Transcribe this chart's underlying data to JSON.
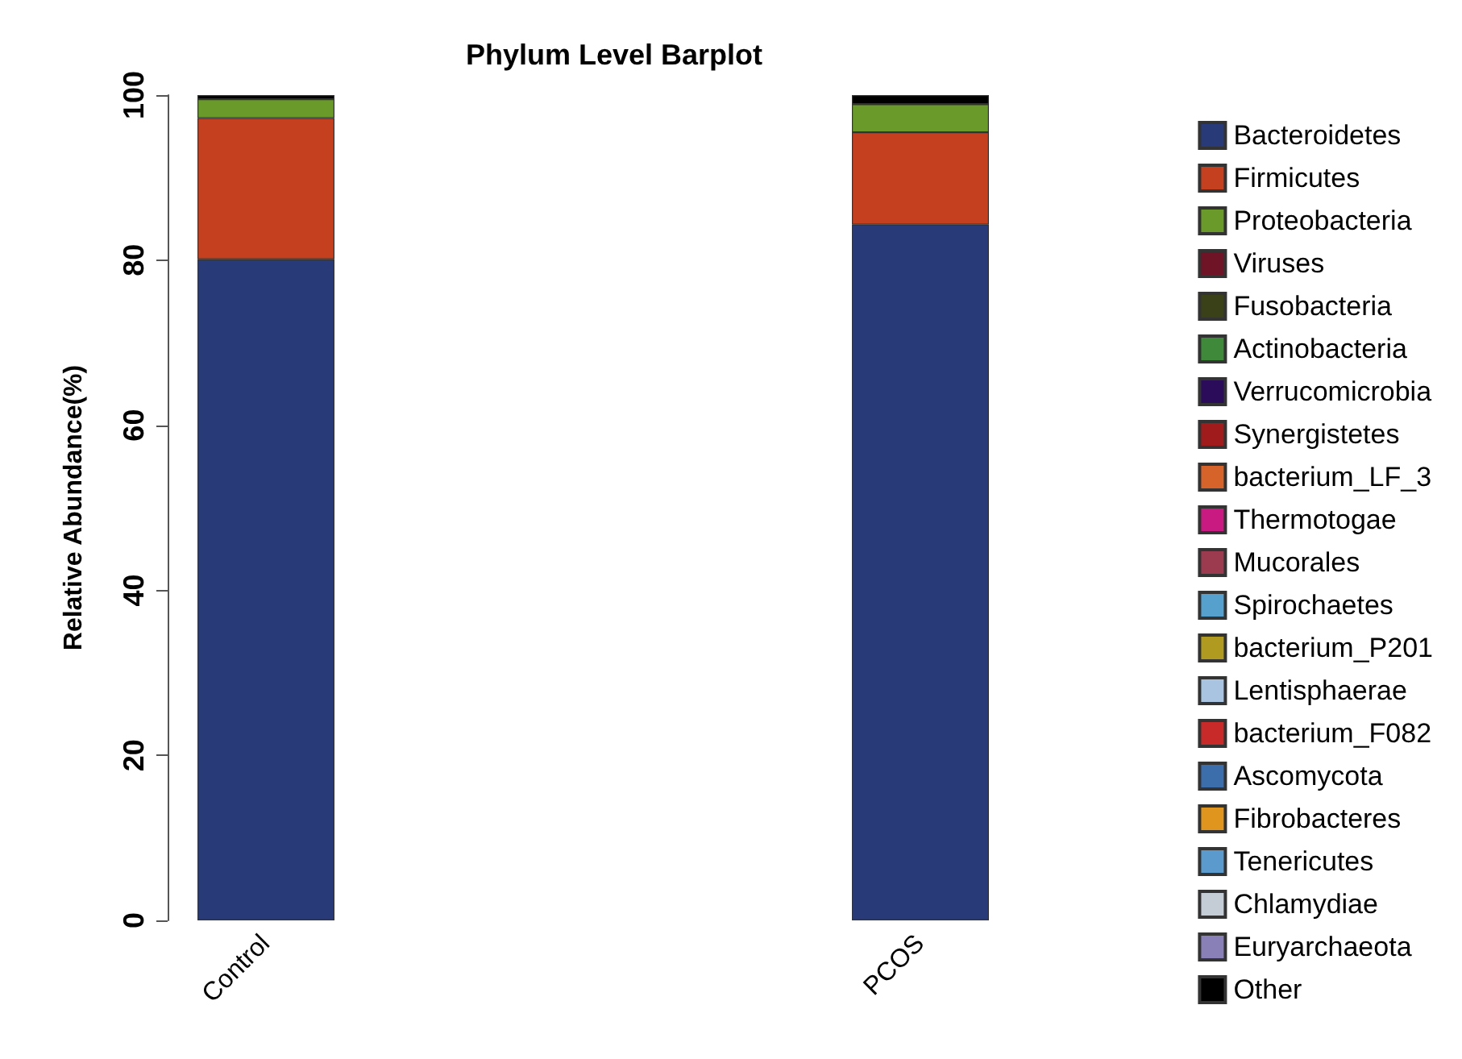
{
  "chart_data": {
    "type": "bar",
    "title": "Phylum Level Barplot",
    "ylabel": "Relative Abundance(%)",
    "categories": [
      "Control",
      "PCOS"
    ],
    "stacked": true,
    "ylim": [
      0,
      100
    ],
    "yticks": [
      0,
      20,
      40,
      60,
      80,
      100
    ],
    "legend": "right",
    "grid": false,
    "series": [
      {
        "name": "Bacteroidetes",
        "color": "#283a78",
        "values": [
          80.1,
          84.3
        ]
      },
      {
        "name": "Firmicutes",
        "color": "#c4401f",
        "values": [
          17.1,
          11.2
        ]
      },
      {
        "name": "Proteobacteria",
        "color": "#6a9a2a",
        "values": [
          2.3,
          3.4
        ]
      },
      {
        "name": "Viruses",
        "color": "#6e1426",
        "values": [
          0,
          0
        ]
      },
      {
        "name": "Fusobacteria",
        "color": "#3a4018",
        "values": [
          0,
          0
        ]
      },
      {
        "name": "Actinobacteria",
        "color": "#3f8a3a",
        "values": [
          0,
          0
        ]
      },
      {
        "name": "Verrucomicrobia",
        "color": "#2a0c5a",
        "values": [
          0,
          0
        ]
      },
      {
        "name": "Synergistetes",
        "color": "#a01c1c",
        "values": [
          0,
          0
        ]
      },
      {
        "name": "bacterium_LF_3",
        "color": "#d6642a",
        "values": [
          0,
          0
        ]
      },
      {
        "name": "Thermotogae",
        "color": "#c81a80",
        "values": [
          0,
          0
        ]
      },
      {
        "name": "Mucorales",
        "color": "#9c3a50",
        "values": [
          0,
          0
        ]
      },
      {
        "name": "Spirochaetes",
        "color": "#55a0cc",
        "values": [
          0,
          0
        ]
      },
      {
        "name": "bacterium_P201",
        "color": "#b09a20",
        "values": [
          0,
          0
        ]
      },
      {
        "name": "Lentisphaerae",
        "color": "#a8c4e0",
        "values": [
          0,
          0
        ]
      },
      {
        "name": "bacterium_F082",
        "color": "#c82a2a",
        "values": [
          0,
          0
        ]
      },
      {
        "name": "Ascomycota",
        "color": "#3c6eac",
        "values": [
          0,
          0
        ]
      },
      {
        "name": "Fibrobacteres",
        "color": "#e0961e",
        "values": [
          0,
          0
        ]
      },
      {
        "name": "Tenericutes",
        "color": "#5a9acc",
        "values": [
          0,
          0
        ]
      },
      {
        "name": "Chlamydiae",
        "color": "#c4ccd6",
        "values": [
          0,
          0
        ]
      },
      {
        "name": "Euryarchaeota",
        "color": "#8a80b8",
        "values": [
          0,
          0
        ]
      },
      {
        "name": "Other",
        "color": "#000000",
        "values": [
          0.5,
          1.1
        ]
      }
    ]
  }
}
